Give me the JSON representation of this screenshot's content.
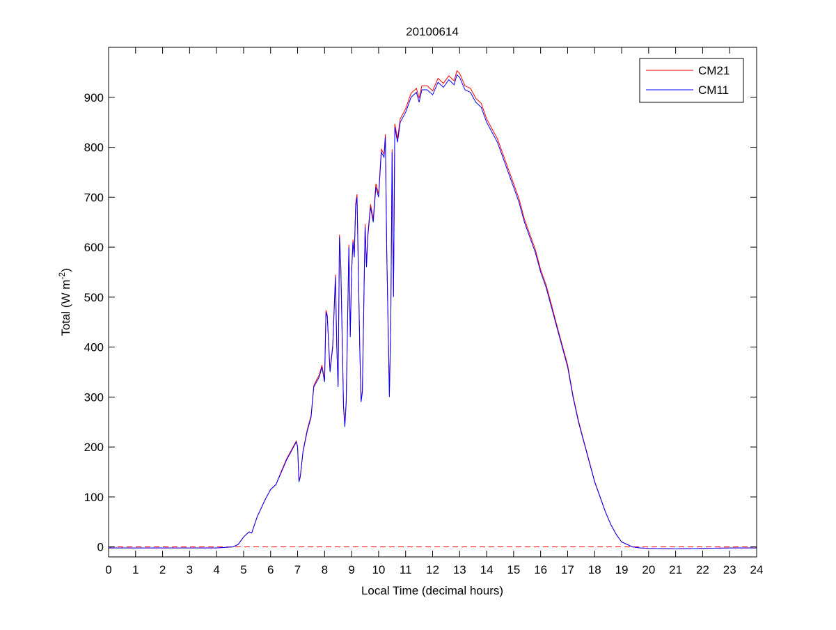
{
  "chart_data": {
    "type": "line",
    "title": "20100614",
    "xlabel": "Local Time (decimal hours)",
    "ylabel_main": "Total (W m",
    "ylabel_sup": "-2",
    "ylabel_close": ")",
    "xlim": [
      0,
      24
    ],
    "ylim": [
      -20,
      1000
    ],
    "xticks": [
      0,
      1,
      2,
      3,
      4,
      5,
      6,
      7,
      8,
      9,
      10,
      11,
      12,
      13,
      14,
      15,
      16,
      17,
      18,
      19,
      20,
      21,
      22,
      23,
      24
    ],
    "yticks": [
      0,
      100,
      200,
      300,
      400,
      500,
      600,
      700,
      800,
      900
    ],
    "grid": false,
    "legend_position": "top-right",
    "reference_line": {
      "y": 0,
      "style": "dashed",
      "color": "#ff0000"
    },
    "x": [
      0,
      4,
      4.6,
      4.8,
      5.0,
      5.2,
      5.3,
      5.5,
      5.8,
      6.0,
      6.2,
      6.4,
      6.6,
      6.8,
      6.95,
      7.0,
      7.05,
      7.1,
      7.2,
      7.35,
      7.5,
      7.6,
      7.7,
      7.8,
      7.9,
      8.0,
      8.05,
      8.1,
      8.2,
      8.3,
      8.4,
      8.45,
      8.5,
      8.55,
      8.6,
      8.7,
      8.75,
      8.8,
      8.9,
      8.95,
      9.0,
      9.05,
      9.1,
      9.15,
      9.2,
      9.3,
      9.35,
      9.4,
      9.5,
      9.55,
      9.6,
      9.7,
      9.8,
      9.9,
      10.0,
      10.1,
      10.2,
      10.25,
      10.3,
      10.4,
      10.45,
      10.5,
      10.55,
      10.6,
      10.7,
      10.8,
      11.0,
      11.2,
      11.4,
      11.5,
      11.6,
      11.8,
      12.0,
      12.2,
      12.4,
      12.6,
      12.8,
      12.9,
      13.0,
      13.2,
      13.4,
      13.6,
      13.8,
      14.0,
      14.2,
      14.4,
      14.6,
      14.8,
      15.0,
      15.2,
      15.4,
      15.6,
      15.8,
      16.0,
      16.2,
      16.4,
      16.6,
      16.8,
      17.0,
      17.2,
      17.4,
      17.6,
      17.8,
      18.0,
      18.2,
      18.4,
      18.6,
      18.8,
      19.0,
      19.4,
      19.7,
      20,
      21,
      22,
      23,
      24
    ],
    "series": [
      {
        "name": "CM21",
        "color": "#ff0000",
        "values": [
          -2,
          -2,
          0,
          5,
          20,
          30,
          28,
          60,
          95,
          115,
          125,
          152,
          177,
          197,
          212,
          202,
          132,
          142,
          192,
          233,
          263,
          323,
          334,
          344,
          364,
          334,
          474,
          464,
          354,
          404,
          545,
          404,
          324,
          625,
          565,
          284,
          244,
          294,
          605,
          424,
          555,
          615,
          585,
          686,
          706,
          404,
          294,
          314,
          646,
          565,
          626,
          686,
          656,
          727,
          706,
          796,
          786,
          826,
          595,
          304,
          454,
          796,
          505,
          847,
          817,
          857,
          877,
          908,
          918,
          898,
          923,
          923,
          913,
          938,
          928,
          943,
          933,
          953,
          948,
          923,
          918,
          898,
          888,
          857,
          837,
          817,
          787,
          757,
          727,
          697,
          656,
          626,
          596,
          555,
          525,
          485,
          444,
          404,
          364,
          303,
          253,
          212,
          172,
          131,
          101,
          70,
          45,
          25,
          10,
          0,
          -2,
          -3,
          -4,
          -3,
          -2,
          -2
        ]
      },
      {
        "name": "CM11",
        "color": "#0000ff",
        "values": [
          -2,
          -2,
          0,
          5,
          20,
          30,
          28,
          60,
          95,
          115,
          125,
          150,
          175,
          195,
          210,
          200,
          130,
          140,
          190,
          230,
          260,
          320,
          330,
          340,
          360,
          330,
          470,
          460,
          350,
          400,
          540,
          400,
          320,
          620,
          560,
          280,
          240,
          290,
          600,
          420,
          550,
          610,
          580,
          680,
          700,
          400,
          290,
          310,
          640,
          560,
          620,
          680,
          650,
          720,
          700,
          790,
          780,
          820,
          590,
          300,
          450,
          790,
          500,
          840,
          810,
          850,
          870,
          900,
          910,
          890,
          915,
          915,
          905,
          930,
          920,
          935,
          925,
          945,
          940,
          915,
          910,
          890,
          880,
          850,
          830,
          810,
          780,
          750,
          720,
          690,
          650,
          620,
          590,
          550,
          520,
          480,
          440,
          400,
          360,
          300,
          250,
          210,
          170,
          130,
          100,
          70,
          45,
          25,
          10,
          0,
          -2,
          -3,
          -4,
          -3,
          -2,
          -2
        ]
      }
    ]
  }
}
